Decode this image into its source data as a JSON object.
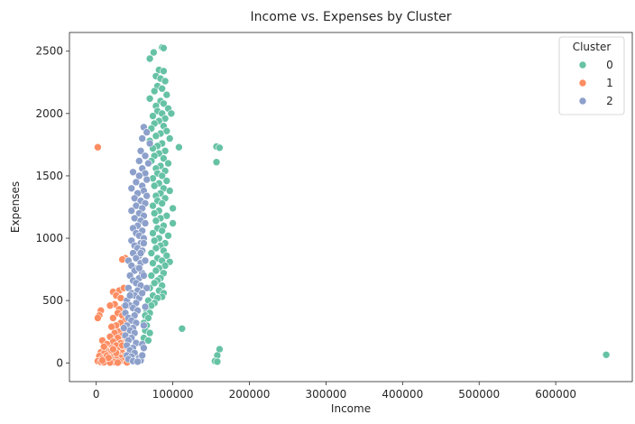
{
  "chart_data": {
    "type": "scatter",
    "title": "Income vs. Expenses by Cluster",
    "xlabel": "Income",
    "ylabel": "Expenses",
    "xlim": [
      -35000,
      700000
    ],
    "ylim": [
      -150,
      2650
    ],
    "xticks": [
      0,
      100000,
      200000,
      300000,
      400000,
      500000,
      600000
    ],
    "xtick_labels": [
      "0",
      "100000",
      "200000",
      "300000",
      "400000",
      "500000",
      "600000"
    ],
    "yticks": [
      0,
      500,
      1000,
      1500,
      2000,
      2500
    ],
    "ytick_labels": [
      "0",
      "500",
      "1000",
      "1500",
      "2000",
      "2500"
    ],
    "grid": false,
    "legend": {
      "title": "Cluster",
      "placement": "top-right",
      "entries": [
        "0",
        "1",
        "2"
      ]
    },
    "series": [
      {
        "name": "0",
        "color": "#66c2a5",
        "points": [
          [
            86000,
            2530
          ],
          [
            88000,
            2525
          ],
          [
            75000,
            2490
          ],
          [
            70000,
            2440
          ],
          [
            82000,
            2350
          ],
          [
            88000,
            2340
          ],
          [
            78000,
            2300
          ],
          [
            84000,
            2280
          ],
          [
            90000,
            2260
          ],
          [
            80000,
            2220
          ],
          [
            86000,
            2200
          ],
          [
            76000,
            2180
          ],
          [
            92000,
            2150
          ],
          [
            70000,
            2120
          ],
          [
            84000,
            2100
          ],
          [
            88000,
            2080
          ],
          [
            78000,
            2060
          ],
          [
            94000,
            2040
          ],
          [
            80000,
            2020
          ],
          [
            86000,
            2000
          ],
          [
            98000,
            2000
          ],
          [
            74000,
            1980
          ],
          [
            90000,
            1960
          ],
          [
            82000,
            1940
          ],
          [
            76000,
            1920
          ],
          [
            88000,
            1900
          ],
          [
            72000,
            1880
          ],
          [
            92000,
            1860
          ],
          [
            84000,
            1840
          ],
          [
            78000,
            1820
          ],
          [
            96000,
            1800
          ],
          [
            70000,
            1780
          ],
          [
            86000,
            1760
          ],
          [
            80000,
            1740
          ],
          [
            108000,
            1730
          ],
          [
            74000,
            1720
          ],
          [
            90000,
            1700
          ],
          [
            82000,
            1680
          ],
          [
            76000,
            1660
          ],
          [
            88000,
            1640
          ],
          [
            72000,
            1620
          ],
          [
            94000,
            1600
          ],
          [
            84000,
            1580
          ],
          [
            78000,
            1560
          ],
          [
            90000,
            1540
          ],
          [
            80000,
            1520
          ],
          [
            86000,
            1500
          ],
          [
            74000,
            1480
          ],
          [
            92000,
            1460
          ],
          [
            82000,
            1440
          ],
          [
            76000,
            1420
          ],
          [
            88000,
            1400
          ],
          [
            96000,
            1380
          ],
          [
            84000,
            1360
          ],
          [
            78000,
            1340
          ],
          [
            90000,
            1320
          ],
          [
            80000,
            1300
          ],
          [
            86000,
            1280
          ],
          [
            74000,
            1260
          ],
          [
            100000,
            1240
          ],
          [
            82000,
            1220
          ],
          [
            76000,
            1200
          ],
          [
            92000,
            1180
          ],
          [
            84000,
            1160
          ],
          [
            78000,
            1140
          ],
          [
            100000,
            1120
          ],
          [
            88000,
            1100
          ],
          [
            80000,
            1080
          ],
          [
            86000,
            1060
          ],
          [
            74000,
            1040
          ],
          [
            94000,
            1020
          ],
          [
            82000,
            1000
          ],
          [
            76000,
            980
          ],
          [
            90000,
            960
          ],
          [
            84000,
            940
          ],
          [
            78000,
            920
          ],
          [
            88000,
            900
          ],
          [
            72000,
            880
          ],
          [
            92000,
            860
          ],
          [
            80000,
            840
          ],
          [
            86000,
            820
          ],
          [
            96000,
            810
          ],
          [
            74000,
            800
          ],
          [
            90000,
            780
          ],
          [
            82000,
            760
          ],
          [
            78000,
            740
          ],
          [
            88000,
            720
          ],
          [
            72000,
            700
          ],
          [
            84000,
            680
          ],
          [
            80000,
            660
          ],
          [
            76000,
            640
          ],
          [
            86000,
            620
          ],
          [
            70000,
            600
          ],
          [
            82000,
            580
          ],
          [
            88000,
            560
          ],
          [
            74000,
            540
          ],
          [
            86000,
            530
          ],
          [
            80000,
            520
          ],
          [
            68000,
            500
          ],
          [
            76000,
            480
          ],
          [
            72000,
            460
          ],
          [
            66000,
            420
          ],
          [
            70000,
            400
          ],
          [
            64000,
            380
          ],
          [
            68000,
            360
          ],
          [
            62000,
            320
          ],
          [
            66000,
            300
          ],
          [
            112000,
            275
          ],
          [
            64000,
            260
          ],
          [
            70000,
            240
          ],
          [
            62000,
            200
          ],
          [
            68000,
            180
          ],
          [
            157000,
            1735
          ],
          [
            161000,
            1725
          ],
          [
            157000,
            1610
          ],
          [
            161000,
            110
          ],
          [
            158000,
            60
          ],
          [
            155000,
            15
          ],
          [
            158000,
            10
          ],
          [
            666000,
            65
          ]
        ]
      },
      {
        "name": "1",
        "color": "#fc8d62",
        "points": [
          [
            2000,
            1730
          ],
          [
            38000,
            840
          ],
          [
            34000,
            830
          ],
          [
            22000,
            570
          ],
          [
            30000,
            580
          ],
          [
            36000,
            600
          ],
          [
            26000,
            540
          ],
          [
            32000,
            520
          ],
          [
            6000,
            420
          ],
          [
            4000,
            380
          ],
          [
            2000,
            360
          ],
          [
            24000,
            470
          ],
          [
            18000,
            460
          ],
          [
            36000,
            450
          ],
          [
            30000,
            430
          ],
          [
            28000,
            400
          ],
          [
            34000,
            380
          ],
          [
            22000,
            360
          ],
          [
            38000,
            340
          ],
          [
            32000,
            320
          ],
          [
            26000,
            300
          ],
          [
            20000,
            290
          ],
          [
            36000,
            270
          ],
          [
            30000,
            250
          ],
          [
            24000,
            240
          ],
          [
            34000,
            220
          ],
          [
            18000,
            210
          ],
          [
            28000,
            200
          ],
          [
            40000,
            190
          ],
          [
            8000,
            180
          ],
          [
            22000,
            170
          ],
          [
            32000,
            160
          ],
          [
            14000,
            150
          ],
          [
            26000,
            140
          ],
          [
            36000,
            130
          ],
          [
            20000,
            120
          ],
          [
            12000,
            110
          ],
          [
            30000,
            100
          ],
          [
            16000,
            95
          ],
          [
            24000,
            90
          ],
          [
            6000,
            85
          ],
          [
            34000,
            80
          ],
          [
            10000,
            75
          ],
          [
            28000,
            70
          ],
          [
            18000,
            65
          ],
          [
            38000,
            60
          ],
          [
            4000,
            55
          ],
          [
            22000,
            50
          ],
          [
            14000,
            45
          ],
          [
            32000,
            40
          ],
          [
            8000,
            35
          ],
          [
            26000,
            30
          ],
          [
            20000,
            25
          ],
          [
            12000,
            20
          ],
          [
            36000,
            18
          ],
          [
            2000,
            15
          ],
          [
            16000,
            12
          ],
          [
            30000,
            10
          ],
          [
            6000,
            8
          ],
          [
            24000,
            6
          ],
          [
            10000,
            5
          ],
          [
            40000,
            4
          ],
          [
            18000,
            3
          ],
          [
            28000,
            2
          ],
          [
            14000,
            60
          ],
          [
            20000,
            100
          ],
          [
            10000,
            130
          ],
          [
            16000,
            40
          ],
          [
            26000,
            80
          ],
          [
            8000,
            20
          ],
          [
            34000,
            140
          ],
          [
            22000,
            110
          ]
        ]
      },
      {
        "name": "2",
        "color": "#8da0cb",
        "points": [
          [
            62000,
            1890
          ],
          [
            66000,
            1850
          ],
          [
            60000,
            1800
          ],
          [
            70000,
            1760
          ],
          [
            58000,
            1700
          ],
          [
            64000,
            1660
          ],
          [
            56000,
            1620
          ],
          [
            68000,
            1600
          ],
          [
            60000,
            1560
          ],
          [
            48000,
            1530
          ],
          [
            64000,
            1520
          ],
          [
            56000,
            1500
          ],
          [
            66000,
            1470
          ],
          [
            52000,
            1450
          ],
          [
            60000,
            1420
          ],
          [
            46000,
            1400
          ],
          [
            62000,
            1380
          ],
          [
            54000,
            1360
          ],
          [
            66000,
            1340
          ],
          [
            50000,
            1320
          ],
          [
            58000,
            1300
          ],
          [
            64000,
            1280
          ],
          [
            52000,
            1260
          ],
          [
            60000,
            1240
          ],
          [
            46000,
            1220
          ],
          [
            56000,
            1200
          ],
          [
            62000,
            1180
          ],
          [
            50000,
            1160
          ],
          [
            58000,
            1140
          ],
          [
            64000,
            1120
          ],
          [
            54000,
            1100
          ],
          [
            48000,
            1080
          ],
          [
            60000,
            1060
          ],
          [
            52000,
            1040
          ],
          [
            56000,
            1020
          ],
          [
            62000,
            1000
          ],
          [
            46000,
            980
          ],
          [
            58000,
            960
          ],
          [
            50000,
            940
          ],
          [
            54000,
            920
          ],
          [
            60000,
            900
          ],
          [
            48000,
            880
          ],
          [
            56000,
            860
          ],
          [
            52000,
            840
          ],
          [
            42000,
            820
          ],
          [
            58000,
            800
          ],
          [
            46000,
            780
          ],
          [
            54000,
            760
          ],
          [
            50000,
            740
          ],
          [
            60000,
            720
          ],
          [
            44000,
            700
          ],
          [
            56000,
            680
          ],
          [
            48000,
            660
          ],
          [
            52000,
            640
          ],
          [
            58000,
            620
          ],
          [
            42000,
            600
          ],
          [
            54000,
            580
          ],
          [
            46000,
            560
          ],
          [
            50000,
            540
          ],
          [
            56000,
            520
          ],
          [
            40000,
            500
          ],
          [
            52000,
            480
          ],
          [
            44000,
            460
          ],
          [
            48000,
            440
          ],
          [
            54000,
            420
          ],
          [
            38000,
            400
          ],
          [
            50000,
            380
          ],
          [
            42000,
            360
          ],
          [
            46000,
            340
          ],
          [
            52000,
            320
          ],
          [
            40000,
            300
          ],
          [
            48000,
            280
          ],
          [
            44000,
            260
          ],
          [
            50000,
            240
          ],
          [
            38000,
            220
          ],
          [
            46000,
            200
          ],
          [
            42000,
            180
          ],
          [
            52000,
            160
          ],
          [
            40000,
            140
          ],
          [
            48000,
            120
          ],
          [
            44000,
            100
          ],
          [
            50000,
            80
          ],
          [
            40000,
            60
          ],
          [
            46000,
            50
          ],
          [
            56000,
            40
          ],
          [
            42000,
            30
          ],
          [
            58000,
            20
          ],
          [
            48000,
            15
          ],
          [
            54000,
            10
          ],
          [
            60000,
            150
          ],
          [
            62000,
            300
          ],
          [
            64000,
            450
          ],
          [
            66000,
            600
          ],
          [
            60000,
            560
          ],
          [
            62000,
            700
          ],
          [
            64000,
            820
          ],
          [
            58000,
            880
          ],
          [
            56000,
            760
          ],
          [
            62000,
            960
          ],
          [
            44000,
            540
          ],
          [
            38000,
            460
          ],
          [
            36000,
            280
          ],
          [
            60000,
            60
          ],
          [
            62000,
            120
          ]
        ]
      }
    ]
  }
}
